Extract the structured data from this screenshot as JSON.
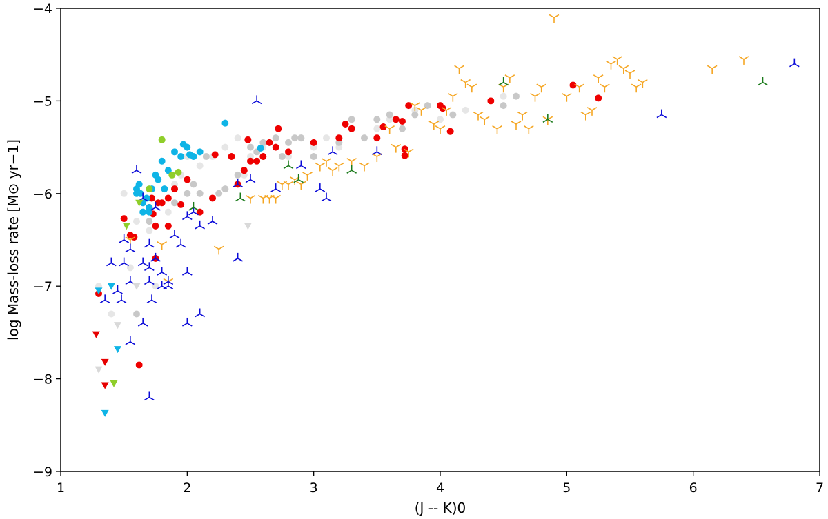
{
  "chart_data": {
    "type": "scatter",
    "title": "",
    "xlabel": "(J -- K)0",
    "ylabel": "log Mass-loss rate  [M⊙ yr−1]",
    "xlim": [
      1,
      7
    ],
    "ylim": [
      -9,
      -4
    ],
    "xticks": [
      1,
      2,
      3,
      4,
      5,
      6,
      7
    ],
    "yticks": [
      -9,
      -8,
      -7,
      -6,
      -5,
      -4
    ],
    "xtick_labels": [
      "1",
      "2",
      "3",
      "4",
      "5",
      "6",
      "7"
    ],
    "ytick_labels": [
      "−9",
      "−8",
      "−7",
      "−6",
      "−5",
      "−4"
    ],
    "grid": false,
    "series": [
      {
        "name": "light grey circles",
        "marker": "circle",
        "color": "#e6e6e6",
        "points": [
          [
            1.5,
            -6.0
          ],
          [
            1.6,
            -6.3
          ],
          [
            1.7,
            -6.4
          ],
          [
            1.85,
            -6.2
          ],
          [
            1.9,
            -5.9
          ],
          [
            1.95,
            -5.8
          ],
          [
            2.0,
            -5.6
          ],
          [
            2.1,
            -5.7
          ],
          [
            2.2,
            -5.6
          ],
          [
            2.3,
            -5.5
          ],
          [
            2.4,
            -5.4
          ],
          [
            2.5,
            -5.6
          ],
          [
            2.6,
            -5.5
          ],
          [
            2.7,
            -5.5
          ],
          [
            2.8,
            -5.6
          ],
          [
            2.9,
            -5.4
          ],
          [
            3.0,
            -5.5
          ],
          [
            3.1,
            -5.4
          ],
          [
            3.2,
            -5.5
          ],
          [
            3.3,
            -5.3
          ],
          [
            3.5,
            -5.3
          ],
          [
            3.6,
            -5.2
          ],
          [
            3.8,
            -5.1
          ],
          [
            4.0,
            -5.2
          ],
          [
            4.2,
            -5.1
          ],
          [
            4.5,
            -4.95
          ],
          [
            1.75,
            -7.0
          ],
          [
            1.55,
            -6.8
          ],
          [
            1.4,
            -7.3
          ],
          [
            1.3,
            -7.0
          ],
          [
            2.45,
            -5.8
          ]
        ]
      },
      {
        "name": "grey circles",
        "marker": "circle",
        "color": "#c8c8c8",
        "points": [
          [
            1.6,
            -7.3
          ],
          [
            1.65,
            -6.1
          ],
          [
            1.7,
            -6.3
          ],
          [
            1.9,
            -6.1
          ],
          [
            2.0,
            -6.0
          ],
          [
            2.05,
            -5.9
          ],
          [
            2.1,
            -6.0
          ],
          [
            2.15,
            -5.6
          ],
          [
            2.25,
            -6.0
          ],
          [
            2.3,
            -5.95
          ],
          [
            2.4,
            -5.8
          ],
          [
            2.5,
            -5.5
          ],
          [
            2.55,
            -5.55
          ],
          [
            2.6,
            -5.45
          ],
          [
            2.7,
            -5.4
          ],
          [
            2.75,
            -5.6
          ],
          [
            2.8,
            -5.45
          ],
          [
            2.85,
            -5.4
          ],
          [
            2.9,
            -5.4
          ],
          [
            3.0,
            -5.6
          ],
          [
            3.2,
            -5.45
          ],
          [
            3.3,
            -5.2
          ],
          [
            3.4,
            -5.4
          ],
          [
            3.5,
            -5.2
          ],
          [
            3.6,
            -5.15
          ],
          [
            3.7,
            -5.3
          ],
          [
            3.8,
            -5.15
          ],
          [
            3.9,
            -5.05
          ],
          [
            4.1,
            -5.15
          ],
          [
            4.5,
            -5.05
          ],
          [
            4.6,
            -4.95
          ]
        ]
      },
      {
        "name": "red circles",
        "marker": "circle",
        "color": "#ee0000",
        "points": [
          [
            1.3,
            -7.08
          ],
          [
            1.5,
            -6.27
          ],
          [
            1.55,
            -6.45
          ],
          [
            1.58,
            -6.47
          ],
          [
            1.62,
            -7.85
          ],
          [
            1.7,
            -6.15
          ],
          [
            1.72,
            -6.05
          ],
          [
            1.73,
            -6.22
          ],
          [
            1.75,
            -6.7
          ],
          [
            1.75,
            -6.35
          ],
          [
            1.77,
            -6.1
          ],
          [
            1.8,
            -6.1
          ],
          [
            1.85,
            -6.35
          ],
          [
            1.85,
            -6.05
          ],
          [
            1.9,
            -5.95
          ],
          [
            1.95,
            -6.12
          ],
          [
            2.0,
            -5.85
          ],
          [
            2.1,
            -6.2
          ],
          [
            2.2,
            -6.05
          ],
          [
            2.22,
            -5.58
          ],
          [
            2.35,
            -5.6
          ],
          [
            2.4,
            -5.9
          ],
          [
            2.45,
            -5.75
          ],
          [
            2.48,
            -5.42
          ],
          [
            2.5,
            -5.65
          ],
          [
            2.55,
            -5.65
          ],
          [
            2.6,
            -5.6
          ],
          [
            2.65,
            -5.45
          ],
          [
            2.7,
            -5.5
          ],
          [
            2.72,
            -5.3
          ],
          [
            2.8,
            -5.55
          ],
          [
            3.0,
            -5.45
          ],
          [
            3.2,
            -5.4
          ],
          [
            3.25,
            -5.25
          ],
          [
            3.3,
            -5.3
          ],
          [
            3.5,
            -5.4
          ],
          [
            3.55,
            -5.28
          ],
          [
            3.65,
            -5.2
          ],
          [
            3.7,
            -5.22
          ],
          [
            3.75,
            -5.05
          ],
          [
            4.0,
            -5.05
          ],
          [
            4.02,
            -5.08
          ],
          [
            4.08,
            -5.33
          ],
          [
            4.4,
            -5.0
          ],
          [
            5.05,
            -4.83
          ],
          [
            5.25,
            -4.97
          ],
          [
            3.72,
            -5.52
          ],
          [
            3.72,
            -5.59
          ]
        ]
      },
      {
        "name": "cyan circles",
        "marker": "circle",
        "color": "#0fb4e6",
        "points": [
          [
            1.6,
            -5.95
          ],
          [
            1.6,
            -6.0
          ],
          [
            1.62,
            -5.9
          ],
          [
            1.65,
            -6.1
          ],
          [
            1.65,
            -6.2
          ],
          [
            1.7,
            -6.15
          ],
          [
            1.7,
            -6.2
          ],
          [
            1.72,
            -5.95
          ],
          [
            1.75,
            -5.8
          ],
          [
            1.77,
            -5.85
          ],
          [
            1.8,
            -5.65
          ],
          [
            1.82,
            -5.95
          ],
          [
            1.85,
            -5.75
          ],
          [
            1.9,
            -5.55
          ],
          [
            1.95,
            -5.6
          ],
          [
            1.97,
            -5.47
          ],
          [
            2.0,
            -5.5
          ],
          [
            2.02,
            -5.58
          ],
          [
            2.05,
            -5.6
          ],
          [
            2.1,
            -5.55
          ],
          [
            2.3,
            -5.24
          ],
          [
            2.58,
            -5.51
          ],
          [
            1.63,
            -6.0
          ],
          [
            1.68,
            -6.05
          ]
        ]
      },
      {
        "name": "yellow-green circles",
        "marker": "circle",
        "color": "#8fce2a",
        "points": [
          [
            1.8,
            -5.42
          ],
          [
            1.88,
            -5.8
          ],
          [
            1.7,
            -5.95
          ],
          [
            1.93,
            -5.77
          ]
        ]
      },
      {
        "name": "orange tripods",
        "marker": "tri_down",
        "color": "#f5a623",
        "points": [
          [
            1.55,
            -6.5
          ],
          [
            1.8,
            -6.55
          ],
          [
            1.85,
            -6.95
          ],
          [
            2.25,
            -6.6
          ],
          [
            2.5,
            -6.05
          ],
          [
            2.6,
            -6.05
          ],
          [
            2.65,
            -6.05
          ],
          [
            2.7,
            -6.05
          ],
          [
            2.75,
            -5.9
          ],
          [
            2.8,
            -5.9
          ],
          [
            2.85,
            -5.85
          ],
          [
            2.9,
            -5.9
          ],
          [
            2.95,
            -5.8
          ],
          [
            3.05,
            -5.7
          ],
          [
            3.1,
            -5.65
          ],
          [
            3.15,
            -5.75
          ],
          [
            3.2,
            -5.7
          ],
          [
            3.3,
            -5.65
          ],
          [
            3.4,
            -5.7
          ],
          [
            3.5,
            -5.6
          ],
          [
            3.6,
            -5.3
          ],
          [
            3.65,
            -5.5
          ],
          [
            3.75,
            -5.55
          ],
          [
            3.8,
            -5.05
          ],
          [
            3.85,
            -5.1
          ],
          [
            3.95,
            -5.25
          ],
          [
            4.0,
            -5.3
          ],
          [
            4.05,
            -5.1
          ],
          [
            4.1,
            -4.95
          ],
          [
            4.15,
            -4.65
          ],
          [
            4.2,
            -4.8
          ],
          [
            4.25,
            -4.85
          ],
          [
            4.3,
            -5.15
          ],
          [
            4.35,
            -5.2
          ],
          [
            4.45,
            -5.3
          ],
          [
            4.5,
            -4.85
          ],
          [
            4.55,
            -4.75
          ],
          [
            4.6,
            -5.25
          ],
          [
            4.65,
            -5.15
          ],
          [
            4.7,
            -5.3
          ],
          [
            4.75,
            -4.95
          ],
          [
            4.8,
            -4.85
          ],
          [
            4.85,
            -5.2
          ],
          [
            4.9,
            -4.1
          ],
          [
            5.0,
            -4.95
          ],
          [
            5.1,
            -4.85
          ],
          [
            5.15,
            -5.15
          ],
          [
            5.2,
            -5.1
          ],
          [
            5.25,
            -4.75
          ],
          [
            5.3,
            -4.85
          ],
          [
            5.35,
            -4.6
          ],
          [
            5.4,
            -4.55
          ],
          [
            5.45,
            -4.65
          ],
          [
            5.5,
            -4.7
          ],
          [
            5.55,
            -4.85
          ],
          [
            5.6,
            -4.8
          ],
          [
            6.15,
            -4.65
          ],
          [
            6.4,
            -4.55
          ]
        ]
      },
      {
        "name": "blue tripods",
        "marker": "tri_up",
        "color": "#0a0ad8",
        "points": [
          [
            1.35,
            -7.15
          ],
          [
            1.4,
            -6.75
          ],
          [
            1.45,
            -7.05
          ],
          [
            1.48,
            -7.15
          ],
          [
            1.5,
            -6.5
          ],
          [
            1.5,
            -6.75
          ],
          [
            1.55,
            -6.6
          ],
          [
            1.55,
            -6.95
          ],
          [
            1.55,
            -7.6
          ],
          [
            1.6,
            -5.75
          ],
          [
            1.65,
            -6.05
          ],
          [
            1.65,
            -6.75
          ],
          [
            1.65,
            -7.4
          ],
          [
            1.7,
            -6.55
          ],
          [
            1.7,
            -6.8
          ],
          [
            1.7,
            -6.95
          ],
          [
            1.72,
            -7.15
          ],
          [
            1.75,
            -6.15
          ],
          [
            1.75,
            -6.7
          ],
          [
            1.8,
            -6.85
          ],
          [
            1.8,
            -7.0
          ],
          [
            1.85,
            -7.0
          ],
          [
            1.85,
            -6.95
          ],
          [
            1.9,
            -6.45
          ],
          [
            1.95,
            -6.55
          ],
          [
            2.0,
            -6.85
          ],
          [
            2.0,
            -6.25
          ],
          [
            2.0,
            -7.4
          ],
          [
            2.05,
            -6.2
          ],
          [
            2.1,
            -6.35
          ],
          [
            2.1,
            -7.3
          ],
          [
            2.2,
            -6.3
          ],
          [
            2.4,
            -5.9
          ],
          [
            2.4,
            -6.7
          ],
          [
            2.5,
            -5.85
          ],
          [
            2.55,
            -5.0
          ],
          [
            2.7,
            -5.95
          ],
          [
            2.9,
            -5.7
          ],
          [
            3.05,
            -5.95
          ],
          [
            3.1,
            -6.05
          ],
          [
            3.15,
            -5.55
          ],
          [
            3.5,
            -5.55
          ],
          [
            5.75,
            -5.15
          ],
          [
            6.8,
            -4.6
          ],
          [
            1.7,
            -8.2
          ]
        ]
      },
      {
        "name": "dark green tripods",
        "marker": "tri_up",
        "color": "#1a7a1a",
        "points": [
          [
            2.05,
            -6.15
          ],
          [
            2.42,
            -6.05
          ],
          [
            2.8,
            -5.7
          ],
          [
            2.88,
            -5.85
          ],
          [
            3.3,
            -5.75
          ],
          [
            4.5,
            -4.8
          ],
          [
            4.85,
            -5.2
          ],
          [
            6.55,
            -4.8
          ]
        ]
      },
      {
        "name": "red triangles",
        "marker": "triangle_down",
        "color": "#e60000",
        "points": [
          [
            1.28,
            -7.52
          ],
          [
            1.35,
            -7.82
          ],
          [
            1.35,
            -8.07
          ]
        ]
      },
      {
        "name": "cyan triangles",
        "marker": "triangle_down",
        "color": "#0fb4e6",
        "points": [
          [
            1.3,
            -7.05
          ],
          [
            1.4,
            -7.0
          ],
          [
            1.45,
            -7.68
          ],
          [
            1.35,
            -8.37
          ]
        ]
      },
      {
        "name": "yellow-green triangles",
        "marker": "triangle_down",
        "color": "#8fce2a",
        "points": [
          [
            1.52,
            -6.35
          ],
          [
            1.62,
            -6.1
          ],
          [
            1.42,
            -8.05
          ]
        ]
      },
      {
        "name": "light grey triangles",
        "marker": "triangle_down",
        "color": "#d9d9d9",
        "points": [
          [
            1.3,
            -7.9
          ],
          [
            1.45,
            -7.42
          ],
          [
            1.6,
            -7.0
          ],
          [
            2.48,
            -6.35
          ]
        ]
      }
    ]
  }
}
